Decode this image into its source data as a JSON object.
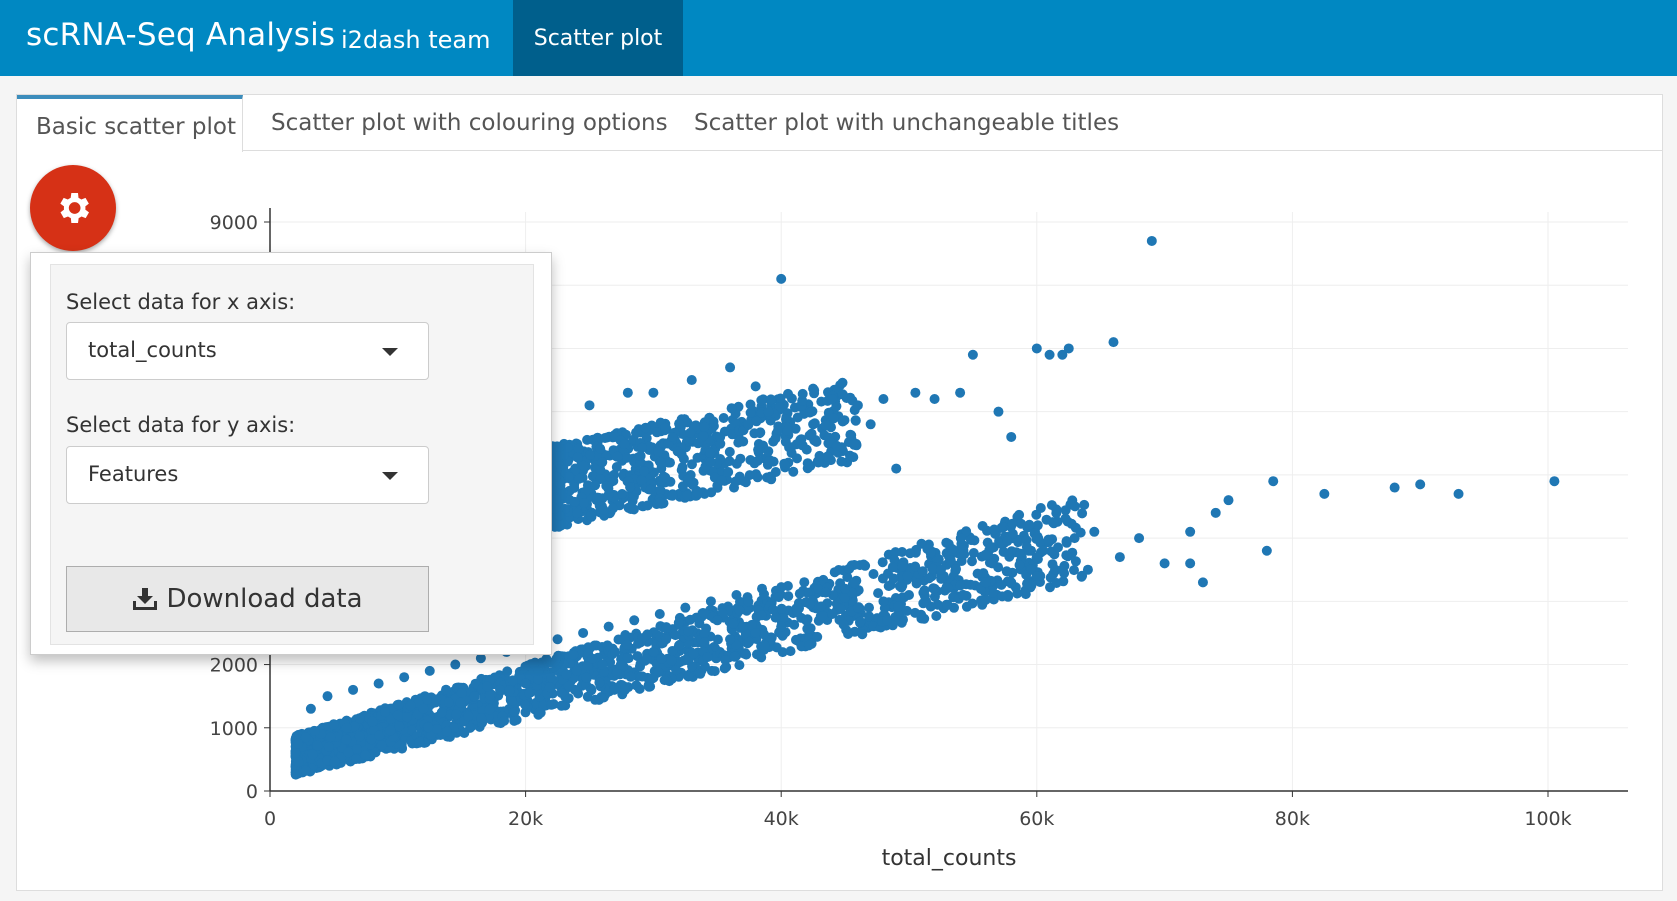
{
  "navbar": {
    "title": "scRNA-Seq Analysis",
    "team": "i2dash team",
    "active_tab": "Scatter plot",
    "color": "#0088c2"
  },
  "tabs": [
    {
      "label": "Basic scatter plot",
      "active": true
    },
    {
      "label": "Scatter plot with colouring options",
      "active": false
    },
    {
      "label": "Scatter plot with unchangeable titles",
      "active": false
    }
  ],
  "settings": {
    "icon": "gear-icon",
    "x_label": "Select data for x axis:",
    "x_value": "total_counts",
    "y_label": "Select data for y axis:",
    "y_value": "Features",
    "download_label": "Download data",
    "download_icon": "download-icon"
  },
  "chart_data": {
    "type": "scatter",
    "xlabel": "total_counts",
    "ylabel": "",
    "xlim": [
      0,
      106000
    ],
    "ylim": [
      0,
      9000
    ],
    "x_ticks": [
      0,
      20000,
      40000,
      60000,
      80000,
      100000
    ],
    "x_tick_labels": [
      "0",
      "20k",
      "40k",
      "60k",
      "80k",
      "100k"
    ],
    "y_ticks": [
      0,
      1000,
      2000,
      9000
    ],
    "y_tick_labels": [
      "0",
      "1000",
      "2000",
      "9000"
    ],
    "grid": true,
    "color": "#1f77b4",
    "series": [
      {
        "x": [
          69000,
          40000,
          66000,
          55000,
          60000,
          61000,
          62000,
          62500,
          49000,
          42000,
          50500,
          48000,
          46000,
          44000,
          57000,
          58000,
          38000,
          36000,
          33000,
          30000,
          28000,
          25000,
          40500,
          42500,
          47000,
          52000,
          54000,
          100500,
          78500,
          82500,
          88000,
          90000,
          93000,
          73000,
          75000,
          72000,
          70000,
          66500,
          64000,
          62000,
          60000,
          58000,
          56000,
          54000,
          52000,
          50000,
          48000,
          46000,
          44000,
          42000,
          40000,
          38000,
          36000,
          34000,
          32000,
          30000,
          28000,
          26000,
          24000,
          22000,
          20000,
          18000,
          16000,
          14000,
          12000,
          10000,
          8000,
          6000,
          4000,
          3000,
          2500,
          2000,
          78000,
          72000,
          74000,
          68000,
          64500,
          60500,
          56500,
          52500,
          45000,
          37000,
          35000,
          31000,
          27000,
          23000,
          21000,
          19000,
          17000,
          15000,
          13000,
          11000,
          9000,
          7000,
          5000,
          3500,
          2800,
          2200,
          3200,
          4500,
          6500,
          8500,
          10500,
          12500,
          14500,
          16500,
          18500,
          20500,
          22500,
          24500,
          26500,
          28500,
          30500,
          32500,
          34500,
          36500,
          38500,
          43000,
          33500,
          29000,
          26000,
          22000,
          20000,
          19000,
          17500,
          16000,
          31500,
          35500,
          39000
        ],
        "y": [
          8700,
          8100,
          7100,
          6900,
          7000,
          6900,
          6900,
          7000,
          5100,
          5400,
          6300,
          6200,
          6100,
          6200,
          6000,
          5600,
          6400,
          6700,
          6500,
          6300,
          6300,
          6100,
          5700,
          5800,
          5800,
          6200,
          6300,
          4900,
          4900,
          4700,
          4800,
          4850,
          4700,
          3300,
          4600,
          3600,
          3600,
          3700,
          3500,
          3500,
          3400,
          3300,
          3300,
          3250,
          3200,
          3100,
          3000,
          2900,
          2800,
          2700,
          2600,
          2500,
          2400,
          2350,
          2300,
          2200,
          2100,
          2000,
          1900,
          1800,
          1700,
          1600,
          1500,
          1400,
          1300,
          1200,
          1100,
          1000,
          900,
          800,
          700,
          600,
          3800,
          4100,
          4400,
          4000,
          4100,
          3800,
          3600,
          3500,
          3200,
          2600,
          2700,
          2400,
          2200,
          2000,
          1900,
          1750,
          1650,
          1550,
          1450,
          1350,
          1250,
          1150,
          1050,
          950,
          850,
          750,
          1300,
          1500,
          1600,
          1700,
          1800,
          1900,
          2000,
          2100,
          2200,
          2300,
          2400,
          2500,
          2600,
          2700,
          2800,
          2900,
          3000,
          3100,
          3200,
          5300,
          5500,
          5300,
          5200,
          5100,
          5000,
          4900,
          4800,
          4700,
          5600,
          5900,
          6000
        ]
      }
    ]
  }
}
